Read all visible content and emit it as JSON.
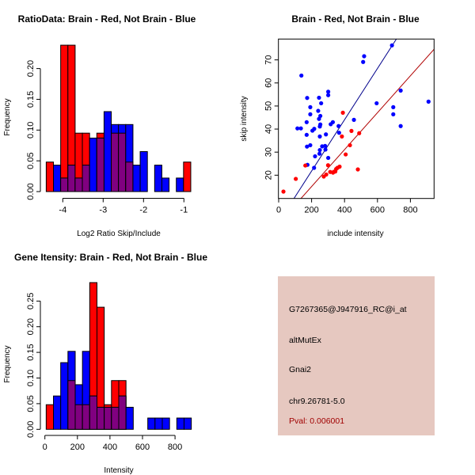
{
  "chart_data": [
    {
      "type": "bar",
      "subtype": "overlaid-histogram",
      "title": "RatioData: Brain - Red, Not Brain - Blue",
      "xlabel": "Log2 Ratio Skip/Include",
      "ylabel": "Frequency",
      "xlim": [
        -4.5,
        -0.8
      ],
      "ylim": [
        0,
        0.24
      ],
      "xticks": [
        -4,
        -3,
        -2,
        -1
      ],
      "xtick_labels": [
        "-4",
        "-3",
        "-2",
        "-1"
      ],
      "yticks": [
        0,
        0.05,
        0.1,
        0.15,
        0.2
      ],
      "ytick_labels": [
        "0.00",
        "0.05",
        "0.10",
        "0.15",
        "0.20"
      ],
      "bin_start": -4.41,
      "bin_width": 0.179,
      "series": [
        {
          "name": "Brain",
          "color": "#ff0000",
          "values": [
            0.048,
            0,
            0.238,
            0.238,
            0.095,
            0.095,
            0,
            0.095,
            0,
            0.095,
            0.095,
            0.048,
            0,
            0,
            0,
            0,
            0,
            0,
            0,
            0.048
          ]
        },
        {
          "name": "Not Brain",
          "color": "#0000ff",
          "values": [
            0,
            0.043,
            0.022,
            0.043,
            0.022,
            0.043,
            0.087,
            0.087,
            0.13,
            0.109,
            0.109,
            0.109,
            0.043,
            0.065,
            0,
            0.043,
            0.022,
            0,
            0.022,
            0
          ]
        }
      ],
      "overlap_color": "#800080"
    },
    {
      "type": "scatter",
      "title": "Brain - Red, Not Brain - Blue",
      "xlabel": "include intensity",
      "ylabel": "skip intensity",
      "xlim": [
        -5,
        945
      ],
      "ylim": [
        10,
        79
      ],
      "xticks": [
        0,
        200,
        400,
        600,
        800
      ],
      "xtick_labels": [
        "0",
        "200",
        "400",
        "600",
        "800"
      ],
      "yticks": [
        20,
        30,
        40,
        50,
        60,
        70
      ],
      "ytick_labels": [
        "20",
        "30",
        "40",
        "50",
        "60",
        "70"
      ],
      "series": [
        {
          "name": "Not Brain",
          "color": "#0000ff",
          "points": [
            [
              138,
              63.2
            ],
            [
              688,
              76.3
            ],
            [
              519,
              71.6
            ],
            [
              513,
              69.1
            ],
            [
              173,
              53.5
            ],
            [
              245,
              53.6
            ],
            [
              301,
              56.2
            ],
            [
              301,
              54.7
            ],
            [
              258,
              51.2
            ],
            [
              192,
              49.5
            ],
            [
              192,
              46.4
            ],
            [
              240,
              47.9
            ],
            [
              170,
              43
            ],
            [
              114,
              40.3
            ],
            [
              135,
              40.3
            ],
            [
              245,
              44.4
            ],
            [
              253,
              42.0
            ],
            [
              250,
              41.1
            ],
            [
              250,
              36.8
            ],
            [
              205,
              39.3
            ],
            [
              216,
              40.1
            ],
            [
              170,
              37.5
            ],
            [
              287,
              37.7
            ],
            [
              253,
              45.7
            ],
            [
              316,
              42.1
            ],
            [
              329,
              43
            ],
            [
              364,
              41.3
            ],
            [
              367,
              38.4
            ],
            [
              457,
              44
            ],
            [
              172,
              32.4
            ],
            [
              192,
              33
            ],
            [
              264,
              32.5
            ],
            [
              282,
              32.7
            ],
            [
              284,
              31.1
            ],
            [
              250,
              30.9
            ],
            [
              248,
              29.3
            ],
            [
              221,
              28.2
            ],
            [
              301,
              27.5
            ],
            [
              175,
              24.5
            ],
            [
              215,
              23.2
            ],
            [
              595,
              51.2
            ],
            [
              696,
              49.5
            ],
            [
              696,
              46.4
            ],
            [
              741,
              56.7
            ],
            [
              741,
              41.3
            ],
            [
              910,
              51.9
            ]
          ],
          "fit": {
            "slope": 0.1112,
            "intercept": -0.44
          }
        },
        {
          "name": "Brain",
          "color": "#ff0000",
          "points": [
            [
              29,
              12.9
            ],
            [
              104,
              18.4
            ],
            [
              162,
              24.2
            ],
            [
              300,
              24.3
            ],
            [
              274,
              19.4
            ],
            [
              289,
              20.3
            ],
            [
              313,
              21.4
            ],
            [
              330,
              21.1
            ],
            [
              344,
              21.6
            ],
            [
              349,
              22.7
            ],
            [
              357,
              23.2
            ],
            [
              370,
              23.7
            ],
            [
              335,
              21.5
            ],
            [
              390,
              47.1
            ],
            [
              384,
              36.8
            ],
            [
              442,
              39.2
            ],
            [
              489,
              38.2
            ],
            [
              433,
              33
            ],
            [
              407,
              29
            ],
            [
              481,
              22.5
            ]
          ],
          "fit": {
            "slope": 0.08,
            "intercept": -0.9
          },
          "fit_color": "#b00000"
        }
      ]
    },
    {
      "type": "bar",
      "subtype": "overlaid-histogram",
      "title": "Gene Itensity: Brain - Red, Not Brain - Blue",
      "xlabel": "Intensity",
      "ylabel": "Frequency",
      "xlim": [
        -20,
        950
      ],
      "ylim": [
        0,
        0.29
      ],
      "xticks": [
        0,
        200,
        400,
        600,
        800
      ],
      "xtick_labels": [
        "0",
        "200",
        "400",
        "600",
        "800"
      ],
      "yticks": [
        0,
        0.05,
        0.1,
        0.15,
        0.2,
        0.25
      ],
      "ytick_labels": [
        "0.00",
        "0.05",
        "0.10",
        "0.15",
        "0.20",
        "0.25"
      ],
      "bin_start": 8,
      "bin_width": 44.6,
      "series": [
        {
          "name": "Brain",
          "color": "#ff0000",
          "values": [
            0.048,
            0,
            0,
            0.095,
            0.048,
            0.048,
            0.286,
            0.238,
            0.048,
            0.095,
            0.095,
            0,
            0,
            0,
            0,
            0,
            0,
            0,
            0,
            0
          ]
        },
        {
          "name": "Not Brain",
          "color": "#0000ff",
          "values": [
            0,
            0.065,
            0.13,
            0.152,
            0.087,
            0.152,
            0.065,
            0.043,
            0.043,
            0.043,
            0.065,
            0.043,
            0,
            0,
            0.022,
            0.022,
            0.022,
            0,
            0.022,
            0.022
          ]
        }
      ],
      "overlap_color": "#800080"
    }
  ],
  "info": {
    "probe": "G7267365@J947916_RC@i_at",
    "event_type": "altMutEx",
    "gene": "Gnai2",
    "location": "chr9.26781-5.0",
    "pval": "Pval: 0.006001",
    "background": "#e6c8c0",
    "pval_color": "#a00000"
  }
}
